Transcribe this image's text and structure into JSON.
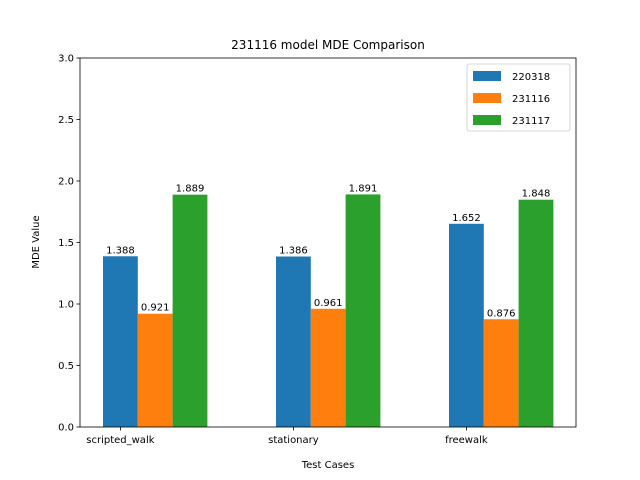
{
  "chart_data": {
    "type": "bar",
    "title": "231116 model MDE Comparison",
    "xlabel": "Test Cases",
    "ylabel": "MDE Value",
    "categories": [
      "scripted_walk",
      "stationary",
      "freewalk"
    ],
    "series": [
      {
        "name": "220318",
        "values": [
          1.388,
          1.386,
          1.652
        ],
        "color": "#1f77b4"
      },
      {
        "name": "231116",
        "values": [
          0.921,
          0.961,
          0.876
        ],
        "color": "#ff7f0e"
      },
      {
        "name": "231117",
        "values": [
          1.889,
          1.891,
          1.848
        ],
        "color": "#2ca02c"
      }
    ],
    "ylim": [
      0,
      3.0
    ],
    "yticks": [
      "0.0",
      "0.5",
      "1.0",
      "1.5",
      "2.0",
      "2.5",
      "3.0"
    ],
    "grid": false,
    "legend_position": "top-right"
  }
}
